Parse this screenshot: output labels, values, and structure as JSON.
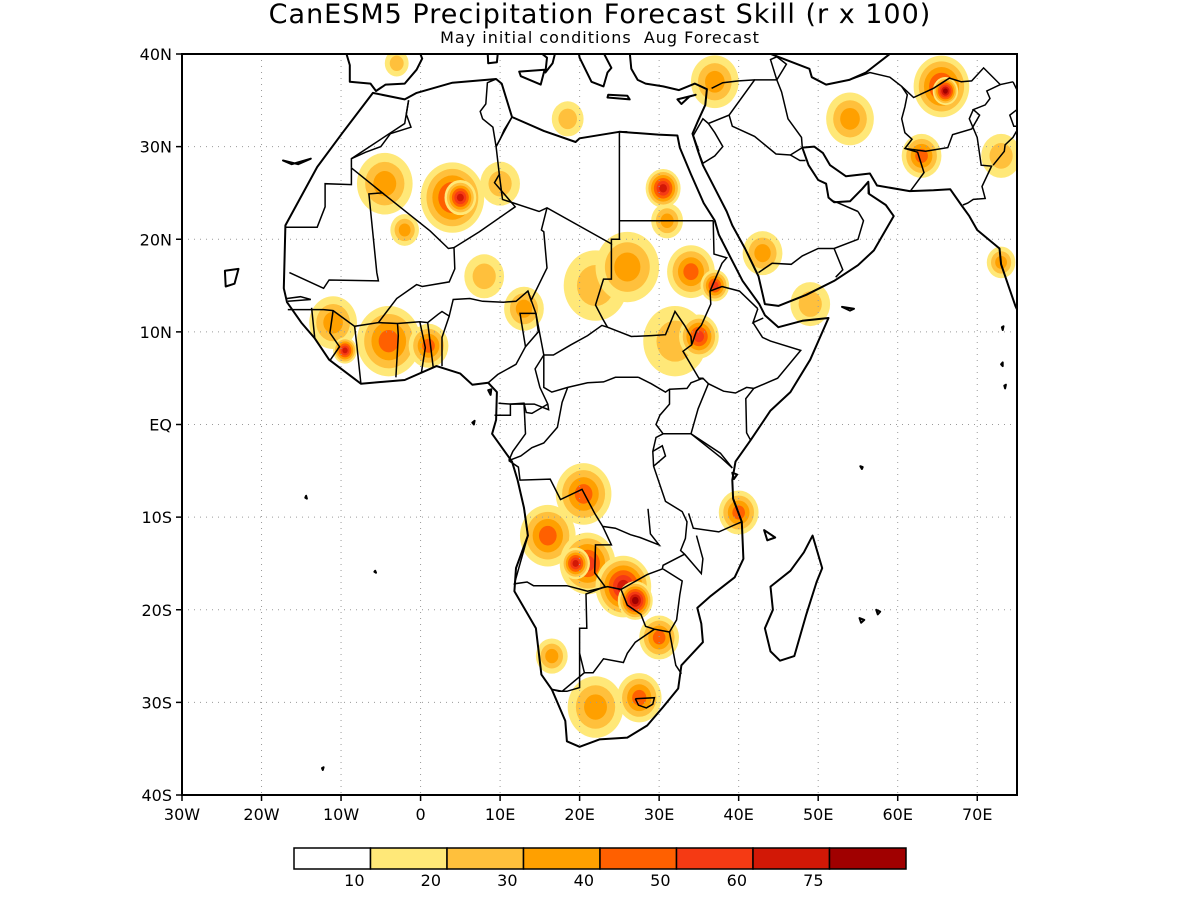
{
  "title": "CanESM5 Precipitation Forecast Skill (r x 100)",
  "subtitle": "May initial conditions  Aug Forecast",
  "map": {
    "lon_range": [
      -30,
      75
    ],
    "lat_range": [
      -40,
      40
    ],
    "grid": "dotted",
    "x_ticks": [
      {
        "value": -30,
        "label": "30W"
      },
      {
        "value": -20,
        "label": "20W"
      },
      {
        "value": -10,
        "label": "10W"
      },
      {
        "value": 0,
        "label": "0"
      },
      {
        "value": 10,
        "label": "10E"
      },
      {
        "value": 20,
        "label": "20E"
      },
      {
        "value": 30,
        "label": "30E"
      },
      {
        "value": 40,
        "label": "40E"
      },
      {
        "value": 50,
        "label": "50E"
      },
      {
        "value": 60,
        "label": "60E"
      },
      {
        "value": 70,
        "label": "70E"
      }
    ],
    "y_ticks": [
      {
        "value": 40,
        "label": "40N"
      },
      {
        "value": 30,
        "label": "30N"
      },
      {
        "value": 20,
        "label": "20N"
      },
      {
        "value": 10,
        "label": "10N"
      },
      {
        "value": 0,
        "label": "EQ"
      },
      {
        "value": -10,
        "label": "10S"
      },
      {
        "value": -20,
        "label": "20S"
      },
      {
        "value": -30,
        "label": "30S"
      },
      {
        "value": -40,
        "label": "40S"
      }
    ]
  },
  "colorbar": {
    "colors": [
      "#ffffff",
      "#ffe878",
      "#ffc03c",
      "#ffa000",
      "#ff6000",
      "#f53a14",
      "#d21806",
      "#a00000"
    ],
    "labels": [
      "10",
      "20",
      "30",
      "40",
      "50",
      "60",
      "75"
    ]
  },
  "skill_regions": [
    {
      "lon": 4,
      "lat": 24.5,
      "r": 4,
      "level": 5
    },
    {
      "lon": 5,
      "lat": 24.5,
      "r": 2,
      "level": 6
    },
    {
      "lon": -4.5,
      "lat": 26,
      "r": 3.5,
      "level": 3
    },
    {
      "lon": -2,
      "lat": 21,
      "r": 1.8,
      "level": 3
    },
    {
      "lon": 10,
      "lat": 26,
      "r": 2.5,
      "level": 2
    },
    {
      "lon": 30.5,
      "lat": 25.5,
      "r": 2.2,
      "level": 6
    },
    {
      "lon": 31,
      "lat": 22,
      "r": 2,
      "level": 3
    },
    {
      "lon": 26,
      "lat": 17,
      "r": 4,
      "level": 3
    },
    {
      "lon": 22,
      "lat": 15,
      "r": 4,
      "level": 2
    },
    {
      "lon": 34,
      "lat": 16.5,
      "r": 3,
      "level": 4
    },
    {
      "lon": 37,
      "lat": 15,
      "r": 1.8,
      "level": 5
    },
    {
      "lon": 35,
      "lat": 9.5,
      "r": 2.5,
      "level": 5
    },
    {
      "lon": 32,
      "lat": 9,
      "r": 4,
      "level": 2
    },
    {
      "lon": 43,
      "lat": 18.5,
      "r": 2.5,
      "level": 3
    },
    {
      "lon": 49,
      "lat": 13,
      "r": 2.5,
      "level": 2
    },
    {
      "lon": -11,
      "lat": 11,
      "r": 3,
      "level": 3
    },
    {
      "lon": -4,
      "lat": 9,
      "r": 4,
      "level": 4
    },
    {
      "lon": -9.5,
      "lat": 8,
      "r": 1.5,
      "level": 6
    },
    {
      "lon": 1,
      "lat": 8.5,
      "r": 2.5,
      "level": 4
    },
    {
      "lon": 13,
      "lat": 12.5,
      "r": 2.5,
      "level": 3
    },
    {
      "lon": 8,
      "lat": 16,
      "r": 2.5,
      "level": 2
    },
    {
      "lon": 40,
      "lat": -9.5,
      "r": 2.5,
      "level": 4
    },
    {
      "lon": 20.5,
      "lat": -7.5,
      "r": 3.5,
      "level": 4
    },
    {
      "lon": 16,
      "lat": -12,
      "r": 3.5,
      "level": 4
    },
    {
      "lon": 21,
      "lat": -15,
      "r": 3.5,
      "level": 5
    },
    {
      "lon": 19.5,
      "lat": -15,
      "r": 1.8,
      "level": 6
    },
    {
      "lon": 25.5,
      "lat": -17.5,
      "r": 3.5,
      "level": 6
    },
    {
      "lon": 27,
      "lat": -19,
      "r": 2.2,
      "level": 7
    },
    {
      "lon": 30,
      "lat": -23,
      "r": 2.5,
      "level": 4
    },
    {
      "lon": 16.5,
      "lat": -25,
      "r": 2,
      "level": 3
    },
    {
      "lon": 22,
      "lat": -30.5,
      "r": 3.5,
      "level": 3
    },
    {
      "lon": 27.5,
      "lat": -29.5,
      "r": 2.8,
      "level": 4
    },
    {
      "lon": 65.5,
      "lat": 36.5,
      "r": 3.5,
      "level": 5
    },
    {
      "lon": 66,
      "lat": 36,
      "r": 1.6,
      "level": 7
    },
    {
      "lon": 63,
      "lat": 29,
      "r": 2.5,
      "level": 4
    },
    {
      "lon": 54,
      "lat": 33,
      "r": 3,
      "level": 3
    },
    {
      "lon": 73,
      "lat": 29,
      "r": 2.5,
      "level": 2
    },
    {
      "lon": 73,
      "lat": 17.5,
      "r": 1.8,
      "level": 3
    },
    {
      "lon": 37,
      "lat": 37,
      "r": 3,
      "level": 3
    },
    {
      "lon": 18.5,
      "lat": 33,
      "r": 2,
      "level": 2
    },
    {
      "lon": -3,
      "lat": 39,
      "r": 1.5,
      "level": 2
    }
  ]
}
